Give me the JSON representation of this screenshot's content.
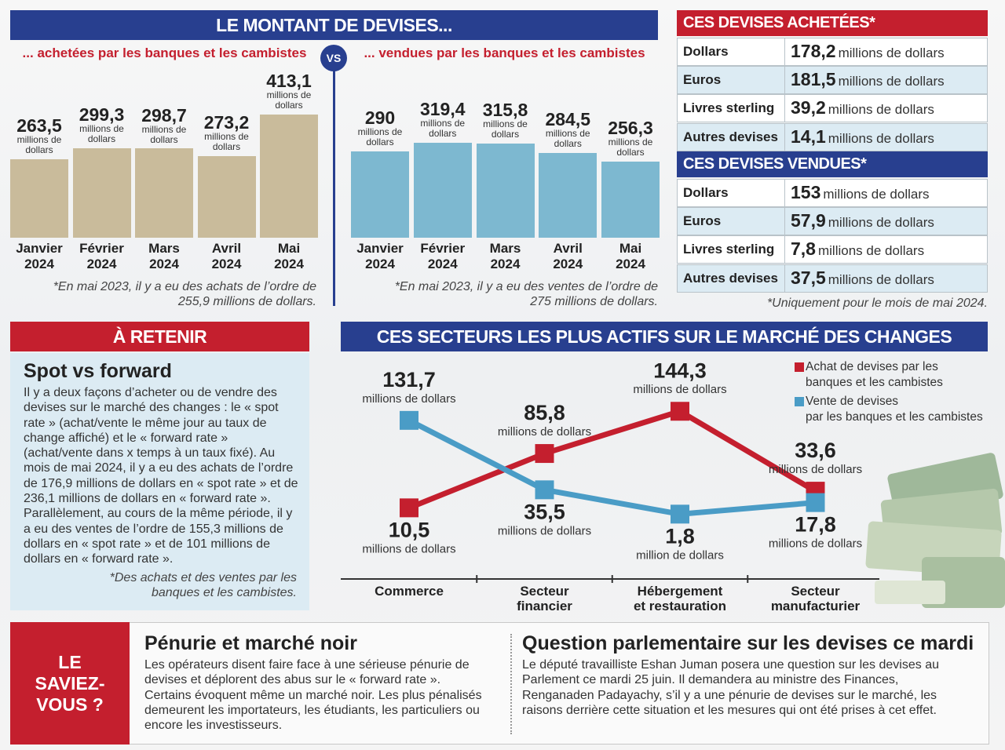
{
  "header": {
    "title": "LE MONTANT DE DEVISES...",
    "vs": "VS"
  },
  "chart_data": [
    {
      "type": "bar",
      "title": "... achetées par les banques et les cambistes",
      "categories": [
        "Janvier\n2024",
        "Février\n2024",
        "Mars\n2024",
        "Avril\n2024",
        "Mai\n2024"
      ],
      "values": [
        263.5,
        299.3,
        298.7,
        273.2,
        413.1
      ],
      "value_labels": [
        "263,5",
        "299,3",
        "298,7",
        "273,2",
        "413,1"
      ],
      "unit": "millions de dollars",
      "color": "#c9bb9b",
      "note": "*En mai 2023, il y a eu des achats de l’ordre de 255,9 millions de dollars."
    },
    {
      "type": "bar",
      "title": "... vendues par les banques et les cambistes",
      "categories": [
        "Janvier\n2024",
        "Février\n2024",
        "Mars\n2024",
        "Avril\n2024",
        "Mai\n2024"
      ],
      "values": [
        290,
        319.4,
        315.8,
        284.5,
        256.3
      ],
      "value_labels": [
        "290",
        "319,4",
        "315,8",
        "284,5",
        "256,3"
      ],
      "unit": "millions de dollars",
      "color": "#7db8d0",
      "note": "*En mai 2023, il y a eu des ventes de l’ordre de 275 millions de dollars."
    },
    {
      "type": "line",
      "title": "CES SECTEURS LES PLUS ACTIFS SUR LE MARCHÉ DES CHANGES",
      "categories": [
        "Commerce",
        "Secteur\nfinancier",
        "Hébergement\net restauration",
        "Secteur\nmanufacturier"
      ],
      "series": [
        {
          "name": "Achat de devises par les\nbanques et les cambistes",
          "color": "#c41f2e",
          "values": [
            10.5,
            85.8,
            144.3,
            33.6
          ],
          "value_labels": [
            "10,5",
            "85,8",
            "144,3",
            "33,6"
          ],
          "units": [
            "millions de dollars",
            "millions de dollars",
            "millions de dollars",
            "millions de dollars"
          ]
        },
        {
          "name": "Vente de devises\npar les banques et les cambistes",
          "color": "#4a9cc6",
          "values": [
            131.7,
            35.5,
            1.8,
            17.8
          ],
          "value_labels": [
            "131,7",
            "35,5",
            "1,8",
            "17,8"
          ],
          "units": [
            "millions de dollars",
            "millions de dollars",
            "million de dollars",
            "millions de dollars"
          ]
        }
      ]
    }
  ],
  "tables": [
    {
      "title": "CES DEVISES ACHETÉES*",
      "color": "#c41f2e",
      "rows": [
        [
          "Dollars",
          "178,2",
          "millions de dollars"
        ],
        [
          "Euros",
          "181,5",
          "millions de dollars"
        ],
        [
          "Livres sterling",
          "39,2",
          "millions de dollars"
        ],
        [
          "Autres devises",
          "14,1",
          "millions de dollars"
        ]
      ]
    },
    {
      "title": "CES DEVISES VENDUES*",
      "color": "#283f8f",
      "rows": [
        [
          "Dollars",
          "153",
          "millions de dollars"
        ],
        [
          "Euros",
          "57,9",
          "millions de dollars"
        ],
        [
          "Livres sterling",
          "7,8",
          "millions de dollars"
        ],
        [
          "Autres devises",
          "37,5",
          "millions de dollars"
        ]
      ]
    }
  ],
  "tables_note": "*Uniquement pour le mois de mai 2024.",
  "retenir": {
    "header": "À RETENIR",
    "title": "Spot vs forward",
    "text": "Il y a deux façons d’acheter ou de vendre des devises sur le marché des changes : le « spot rate » (achat/vente le même jour au taux de change affiché) et le « forward rate » (achat/vente dans x temps à un taux fixé). Au mois de mai 2024, il y a eu des achats de l’ordre de 176,9 millions de dollars en « spot rate » et de 236,1 millions de dollars en « forward rate ». Parallèlement, au cours de la même période, il y a eu des ventes de l’ordre de 155,3 millions de dollars en « spot rate » et de 101 millions de dollars en « forward rate ».",
    "note": "*Des achats et des ventes par les banques et les cambistes."
  },
  "saviez": {
    "label": "LE\nSAVIEZ-\nVOUS ?",
    "articles": [
      {
        "title": "Pénurie et marché noir",
        "text": "Les opérateurs disent faire face à une sérieuse pénurie de devises et déplorent des abus sur le « forward rate ». Certains évoquent même un marché noir. Les plus pénalisés demeurent les importateurs, les étudiants, les particuliers ou encore les investisseurs."
      },
      {
        "title": "Question parlementaire sur les devises ce mardi",
        "text": "Le député travailliste Eshan Juman posera une question sur les devises au Parlement ce mardi 25 juin. Il demandera au ministre des Finances, Renganaden Padayachy, s’il y a une pénurie de devises sur le marché, les raisons derrière cette situation et les mesures qui ont été prises à cet effet."
      }
    ]
  }
}
